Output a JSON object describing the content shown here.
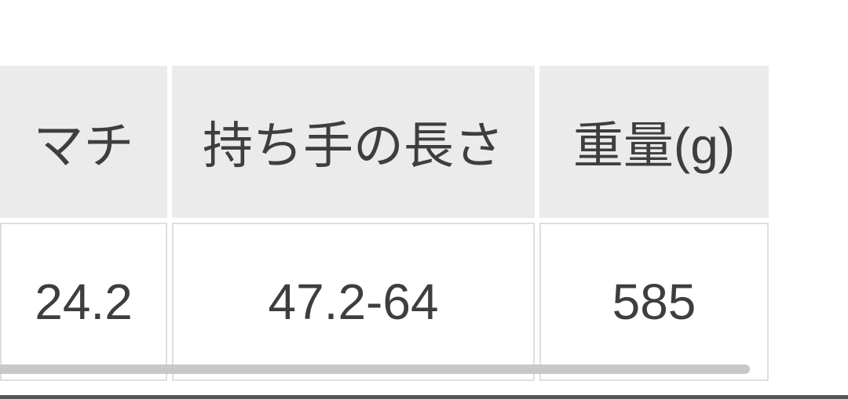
{
  "spec_table": {
    "columns": [
      {
        "header": "マチ",
        "value": "24.2"
      },
      {
        "header": "持ち手の長さ",
        "value": "47.2-64"
      },
      {
        "header": "重量(g)",
        "value": "585"
      }
    ]
  },
  "scrollbar": {
    "orientation": "horizontal",
    "position": "near-right-end"
  },
  "colors": {
    "page_background": "#ffffff",
    "header_cell_background": "#ebebeb",
    "cell_text": "#3e3e40",
    "cell_border": "#dedede",
    "scrollbar_thumb": "#c8c8c8",
    "bottom_bar": "#56565a"
  }
}
